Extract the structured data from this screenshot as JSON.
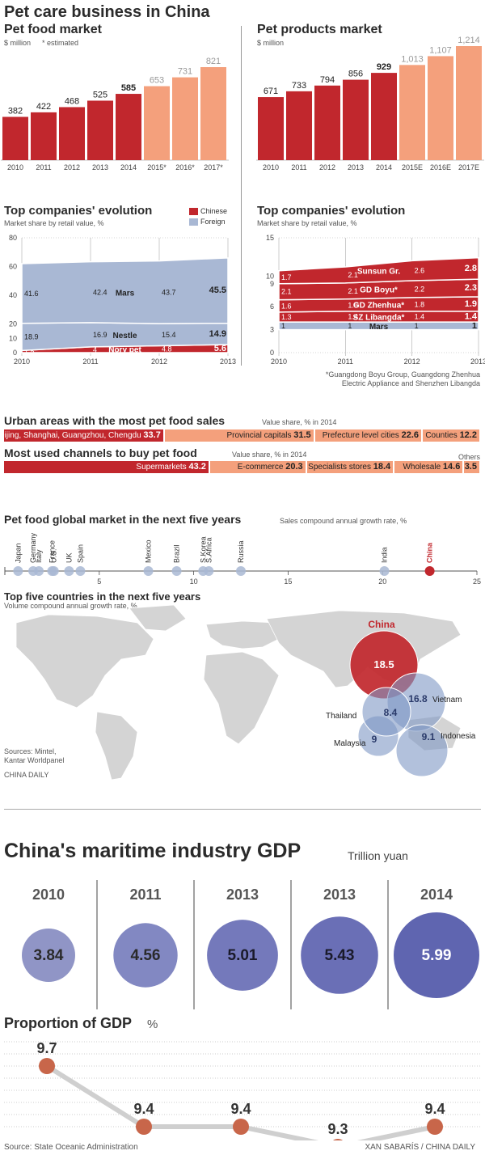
{
  "colors": {
    "chinese": "#c1272d",
    "foreign": "#a9b8d4",
    "estimate": "#f4a07c",
    "map": "#d4d4d4",
    "gdp_circle": "#6e74b8",
    "line": "#cfcfcf",
    "dot": "#c8664a"
  },
  "header": {
    "title": "Pet care business in China"
  },
  "food_market": {
    "title": "Pet food market",
    "unit": "$ million",
    "note": "* estimated"
  },
  "products_market": {
    "title": "Pet products market",
    "unit": "$ million"
  },
  "top_left": {
    "title": "Top companies' evolution",
    "subtitle": "Market share by retail value, %",
    "legend_chinese": "Chinese",
    "legend_foreign": "Foreign"
  },
  "top_right": {
    "title": "Top companies' evolution",
    "subtitle": "Market share by retail value, %",
    "footnote1": "*Guangdong Boyu Group, Guangdong Zhenhua",
    "footnote2": "Electric Appliance and Shenzhen Libangda"
  },
  "urban": {
    "title": "Urban areas with the most pet food sales",
    "subtitle": "Value share, % in 2014"
  },
  "channels": {
    "title": "Most used channels to buy pet food",
    "subtitle": "Value share, % in 2014",
    "others_label": "Others"
  },
  "global": {
    "title": "Pet food global market in the next five years",
    "subtitle": "Sales compound annual growth rate, %"
  },
  "map": {
    "title": "Top five countries in the next five years",
    "subtitle": "Volume compound annual growth rate, %",
    "sources1": "Sources: Mintel,",
    "sources2": "Kantar Worldpanel",
    "credit": "CHINA DAILY"
  },
  "maritime": {
    "title": "China's maritime industry GDP",
    "unit": "Trillion yuan",
    "proportion_title": "Proportion of GDP",
    "proportion_unit": "%",
    "source": "Source: State Oceanic Administration",
    "credit": "XAN SABARÍS / CHINA DAILY"
  },
  "chart_data": [
    {
      "type": "bar",
      "title": "Pet food market",
      "ylabel": "$ million",
      "categories": [
        "2010",
        "2011",
        "2012",
        "2013",
        "2014",
        "2015*",
        "2016*",
        "2017*"
      ],
      "values": [
        382,
        422,
        468,
        525,
        585,
        653,
        731,
        821
      ],
      "estimated": [
        false,
        false,
        false,
        false,
        false,
        true,
        true,
        true
      ]
    },
    {
      "type": "bar",
      "title": "Pet products market",
      "ylabel": "$ million",
      "categories": [
        "2010",
        "2011",
        "2012",
        "2013",
        "2014",
        "2015E",
        "2016E",
        "2017E"
      ],
      "values": [
        671,
        733,
        794,
        856,
        929,
        1013,
        1107,
        1214
      ],
      "estimated": [
        false,
        false,
        false,
        false,
        false,
        true,
        true,
        true
      ]
    },
    {
      "type": "area",
      "title": "Top companies' evolution",
      "subtitle": "Market share by retail value, %",
      "x": [
        "2010",
        "2011",
        "2012",
        "2013"
      ],
      "ylim": [
        0,
        80
      ],
      "yticks": [
        0,
        10,
        20,
        40,
        60,
        80
      ],
      "series": [
        {
          "name": "Mars",
          "group": "Foreign",
          "values": [
            41.6,
            42.4,
            43.7,
            45.5
          ]
        },
        {
          "name": "Nestle",
          "group": "Foreign",
          "values": [
            18.9,
            16.9,
            15.4,
            14.9
          ]
        },
        {
          "name": "Nory pet",
          "group": "Chinese",
          "values": [
            1.5,
            4,
            4.8,
            5.6
          ]
        }
      ]
    },
    {
      "type": "area",
      "title": "Top companies' evolution",
      "subtitle": "Market share by retail value, %",
      "x": [
        "2010",
        "2011",
        "2012",
        "2013"
      ],
      "ylim": [
        0,
        15
      ],
      "yticks": [
        0,
        3,
        6,
        9,
        10,
        15
      ],
      "series": [
        {
          "name": "Mars",
          "group": "Foreign",
          "values": [
            1,
            1,
            1,
            1
          ]
        },
        {
          "name": "SZ Libangda*",
          "group": "Chinese",
          "values": [
            1.3,
            1.4,
            1.4,
            1.4
          ]
        },
        {
          "name": "GD Zhenhua*",
          "group": "Chinese",
          "values": [
            1.6,
            1.6,
            1.8,
            1.9
          ]
        },
        {
          "name": "GD Boyu*",
          "group": "Chinese",
          "values": [
            2.1,
            2.1,
            2.2,
            2.3
          ]
        },
        {
          "name": "Sunsun Gr.",
          "group": "Chinese",
          "values": [
            1.7,
            2.1,
            2.6,
            2.8
          ]
        }
      ]
    },
    {
      "type": "bar",
      "title": "Urban areas with the most pet food sales",
      "subtitle": "Value share, % in 2014",
      "categories": [
        "Beijing, Shanghai, Guangzhou, Chengdu",
        "Provincial capitals",
        "Prefecture level cities",
        "Counties"
      ],
      "values": [
        33.7,
        31.5,
        22.6,
        12.2
      ]
    },
    {
      "type": "bar",
      "title": "Most used channels to buy pet food",
      "subtitle": "Value share, % in 2014",
      "categories": [
        "Supermarkets",
        "E-commerce",
        "Specialists stores",
        "Wholesale",
        "Others"
      ],
      "values": [
        43.2,
        20.3,
        18.4,
        14.6,
        3.5
      ]
    },
    {
      "type": "scatter",
      "title": "Pet food global market in the next five years",
      "subtitle": "Sales compound annual growth rate, %",
      "xlim": [
        0,
        25
      ],
      "xticks": [
        5,
        10,
        15,
        20,
        25
      ],
      "points": [
        {
          "label": "Japan",
          "x": 0.7
        },
        {
          "label": "Germany",
          "x": 1.5
        },
        {
          "label": "Italy",
          "x": 1.8
        },
        {
          "label": "France",
          "x": 2.5
        },
        {
          "label": "U.S.",
          "x": 2.6
        },
        {
          "label": "UK",
          "x": 3.4
        },
        {
          "label": "Spain",
          "x": 4.0
        },
        {
          "label": "Mexico",
          "x": 7.6
        },
        {
          "label": "Brazil",
          "x": 9.1
        },
        {
          "label": "S.Korea",
          "x": 10.5
        },
        {
          "label": "S.Africa",
          "x": 10.8
        },
        {
          "label": "Russia",
          "x": 12.5
        },
        {
          "label": "India",
          "x": 20.1
        },
        {
          "label": "China",
          "x": 22.5
        }
      ]
    },
    {
      "type": "scatter",
      "title": "Top five countries in the next five years",
      "subtitle": "Volume compound annual growth rate, %",
      "points": [
        {
          "label": "China",
          "value": 18.5
        },
        {
          "label": "Vietnam",
          "value": 16.8
        },
        {
          "label": "Indonesia",
          "value": 9.1
        },
        {
          "label": "Malaysia",
          "value": 9
        },
        {
          "label": "Thailand",
          "value": 8.4
        }
      ]
    },
    {
      "type": "scatter",
      "title": "China's maritime industry GDP",
      "ylabel": "Trillion yuan",
      "categories": [
        "2010",
        "2011",
        "2013",
        "2013",
        "2014"
      ],
      "values": [
        3.84,
        4.56,
        5.01,
        5.43,
        5.99
      ]
    },
    {
      "type": "line",
      "title": "Proportion of GDP",
      "ylabel": "%",
      "categories": [
        "2010",
        "2011",
        "2013",
        "2013",
        "2014"
      ],
      "values": [
        9.7,
        9.4,
        9.4,
        9.3,
        9.4
      ]
    }
  ]
}
